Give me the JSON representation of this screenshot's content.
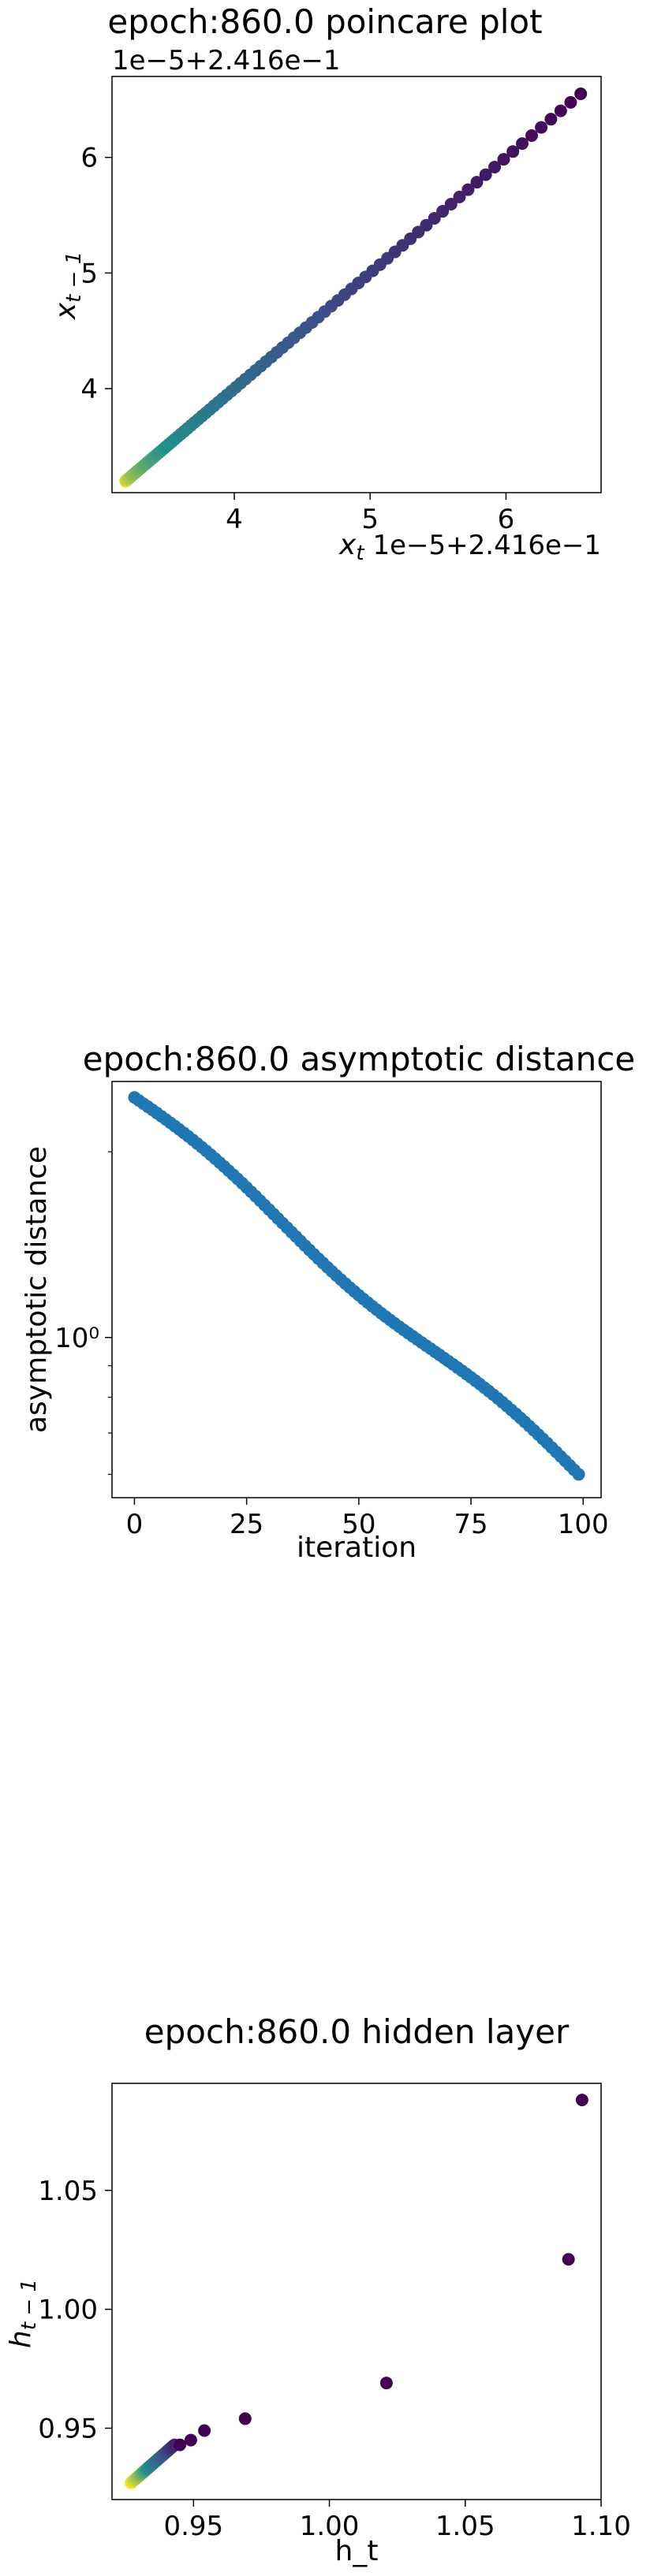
{
  "chart_data": [
    {
      "type": "scatter",
      "title": "epoch:860.0 poincare plot",
      "xlabel": "x_t",
      "ylabel": "x_{t-1}",
      "x_offset_label": "1e−5+2.416e−1",
      "y_offset_label": "1e−5+2.416e−1",
      "xlim": [
        3.1,
        6.7
      ],
      "ylim": [
        3.1,
        6.7
      ],
      "xticks": [
        "4",
        "5",
        "6"
      ],
      "yticks": [
        "4",
        "5",
        "6"
      ],
      "colormap": [
        "#fde725",
        "#21918c",
        "#3b528b",
        "#440154"
      ],
      "points_range": [
        3.2,
        6.55
      ],
      "n_points": 100,
      "grid": false
    },
    {
      "type": "scatter",
      "title": "epoch:860.0 asymptotic distance",
      "xlabel": "iteration",
      "ylabel": "asymptotic distance",
      "xlim": [
        -5,
        104
      ],
      "xticks": [
        "0",
        "25",
        "50",
        "75",
        "100"
      ],
      "ytick_major": "10⁰",
      "y_scale": "log",
      "ylim": [
        0.55,
        2.6
      ],
      "color": "#1f77b4",
      "x": [
        0,
        99
      ],
      "y_start": 2.45,
      "y_end": 0.6,
      "grid": false
    },
    {
      "type": "scatter",
      "title": "epoch:860.0 hidden layer",
      "xlabel": "h_t",
      "ylabel": "h_{t-1}",
      "xlim": [
        0.92,
        1.1
      ],
      "ylim": [
        0.92,
        1.095
      ],
      "xticks": [
        "0.95",
        "1.00",
        "1.05",
        "1.10"
      ],
      "yticks": [
        "0.95",
        "1.00",
        "1.05"
      ],
      "colormap": [
        "#fde725",
        "#21918c",
        "#3b528b",
        "#440154"
      ],
      "points": [
        [
          1.093,
          1.088
        ],
        [
          1.088,
          1.021
        ],
        [
          1.021,
          0.969
        ],
        [
          0.969,
          0.954
        ],
        [
          0.954,
          0.949
        ],
        [
          0.949,
          0.945
        ],
        [
          0.945,
          0.943
        ]
      ],
      "cluster_range": [
        0.927,
        0.943
      ],
      "grid": false
    }
  ]
}
